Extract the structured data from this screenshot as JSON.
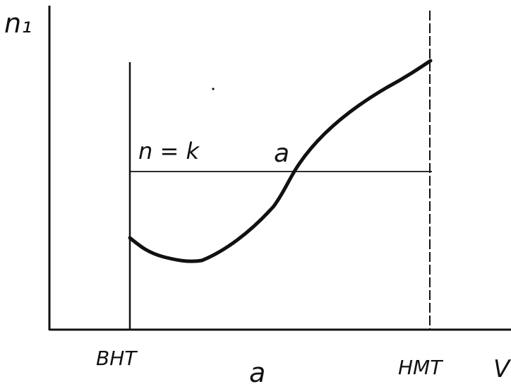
{
  "diagram": {
    "y_axis_label": "n₁",
    "x_axis_label": "V",
    "left_boundary_label": "ВНТ",
    "right_boundary_label": "НМТ",
    "horizontal_line_label": "n = k",
    "intersection_label": "a",
    "caption": "a"
  },
  "colors": {
    "ink": "#111111"
  }
}
